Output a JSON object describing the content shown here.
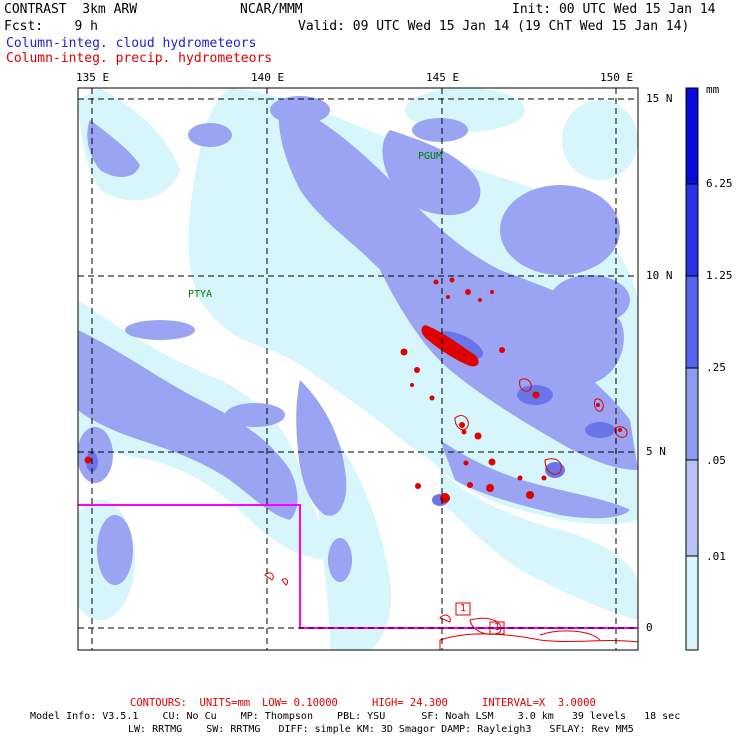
{
  "header": {
    "model": "CONTRAST  3km ARW",
    "org": "NCAR/MMM",
    "init": "Init: 00 UTC Wed 15 Jan 14",
    "forecast": "Fcst:    9 h",
    "valid": "Valid: 09 UTC Wed 15 Jan 14 (19 ChT Wed 15 Jan 14)",
    "field_cloud": "Column-integ. cloud hydrometeors",
    "field_precip": "Column-integ. precip. hydrometeors"
  },
  "map": {
    "longitude_labels": [
      "135 E",
      "140 E",
      "145 E",
      "150 E"
    ],
    "latitude_labels": [
      "15 N",
      "10 N",
      "5 N",
      "0"
    ],
    "place_labels": [
      "PGUM",
      "PTYA"
    ],
    "contour_markers": [
      "1",
      "1"
    ]
  },
  "legend": {
    "unit": "mm",
    "ticks": [
      "6.25",
      "1.25",
      ".25",
      ".05",
      ".01"
    ],
    "colors": [
      "#ffffff",
      "#d6f6fb",
      "#b9c2f7",
      "#8f9bf0",
      "#5862ea",
      "#2a32e6",
      "#0b0bd9"
    ]
  },
  "footer": {
    "contours_prefix": "CONTOURS:  UNITS=mm",
    "contours_low": "LOW= 0.10000",
    "contours_high": "HIGH= 24.300",
    "contours_interval": "INTERVAL=X  3.0000",
    "model_info_1": "Model Info: V3.5.1    CU: No Cu    MP: Thompson    PBL: YSU      SF: Noah LSM    3.0 km   39 levels   18 sec",
    "model_info_2": "LW: RRTMG    SW: RRTMG   DIFF: simple KM: 3D Smagor DAMP: Rayleigh3   SFLAY: Rev MM5"
  },
  "colors": {
    "cloud_label": "#1f1fd0",
    "precip_label": "#e00000",
    "domain_box": "#ff00ff",
    "precip_contour": "#e00000"
  }
}
